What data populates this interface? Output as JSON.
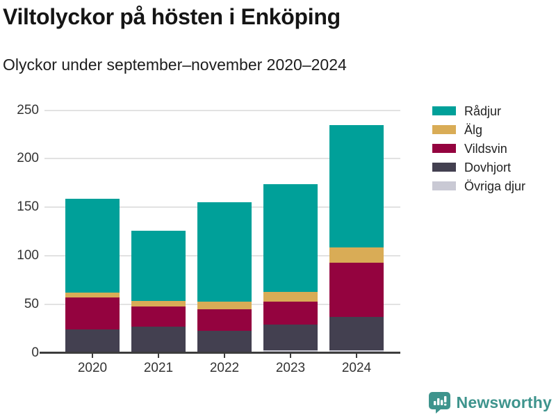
{
  "header": {
    "title": "Viltolyckor på hösten i Enköping",
    "subtitle": "Olyckor under september–november 2020–2024"
  },
  "chart_data": {
    "type": "bar",
    "stacked": true,
    "title": "Viltolyckor på hösten i Enköping",
    "subtitle": "Olyckor under september–november 2020–2024",
    "categories": [
      "2020",
      "2021",
      "2022",
      "2023",
      "2024"
    ],
    "series": [
      {
        "name": "Rådjur",
        "color": "#00A099",
        "values": [
          97,
          72,
          102,
          111,
          126
        ]
      },
      {
        "name": "Älg",
        "color": "#D9AC56",
        "values": [
          5,
          6,
          8,
          10,
          16
        ]
      },
      {
        "name": "Vildsvin",
        "color": "#94033F",
        "values": [
          33,
          21,
          22,
          24,
          56
        ]
      },
      {
        "name": "Dovhjort",
        "color": "#434050",
        "values": [
          24,
          27,
          23,
          26,
          34
        ]
      },
      {
        "name": "Övriga djur",
        "color": "#C9C9D4",
        "values": [
          0,
          0,
          0,
          3,
          3
        ]
      }
    ],
    "totals": [
      159,
      126,
      155,
      174,
      235
    ],
    "xlabel": "",
    "ylabel": "",
    "ylim": [
      0,
      250
    ],
    "yticks": [
      0,
      50,
      100,
      150,
      200,
      250
    ],
    "grid": true,
    "legend_position": "right",
    "gridline_color": "#e2e2e2",
    "axis_color": "#3d3d3d",
    "text_color": "#333333"
  },
  "footer": {
    "brand": "Newsworthy",
    "brand_color": "#3E948D",
    "logo_icon": "bar-chart-speech-bubble"
  }
}
